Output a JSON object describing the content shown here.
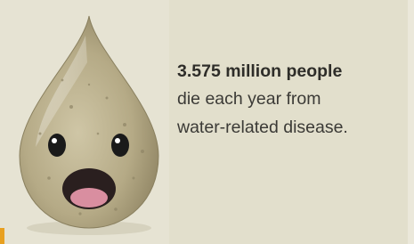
{
  "text": {
    "headline": "3.575 million people",
    "lines": [
      "die each year from",
      "water-related disease."
    ]
  }
}
